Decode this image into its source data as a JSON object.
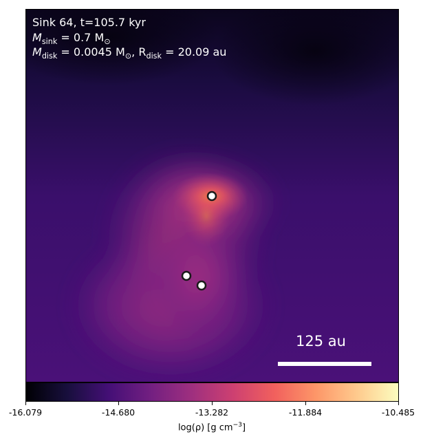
{
  "annotations": {
    "line1": "Sink 64, t=105.7 kyr",
    "line2_m": "M",
    "line2_sub": "sink",
    "line2_rest": " = 0.7 M",
    "line2_sun": "⊙",
    "line3_m": "M",
    "line3_sub": "disk",
    "line3_mid": " = 0.0045 M",
    "line3_sun": "⊙",
    "line3_sep": ", R",
    "line3_sub2": "disk",
    "line3_rest": " = 20.09 au"
  },
  "scalebar": {
    "label": "125 au"
  },
  "colorbar": {
    "ticks": [
      "-16.079",
      "-14.680",
      "-13.282",
      "-11.884",
      "-10.485"
    ],
    "label_pre": "log(ρ) [g cm",
    "label_sup": "−3",
    "label_post": "]",
    "colors": [
      "#000004",
      "#180f3d",
      "#440f76",
      "#721f81",
      "#9e2f7f",
      "#cd4071",
      "#f1605d",
      "#fd9668",
      "#feca8d",
      "#fcfdbf"
    ]
  },
  "sinks": [
    {
      "name": "sink-main"
    },
    {
      "name": "sink-secondary-a"
    },
    {
      "name": "sink-secondary-b"
    }
  ]
}
